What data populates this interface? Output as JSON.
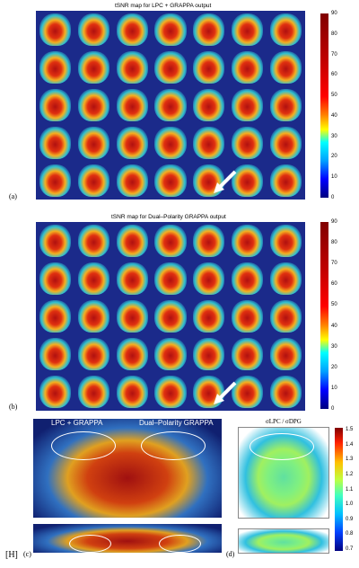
{
  "figure": {
    "panel_a": {
      "label": "(a)",
      "title": "tSNR map for LPC + GRAPPA output",
      "colorbar_ticks": [
        "90",
        "80",
        "70",
        "60",
        "50",
        "40",
        "30",
        "20",
        "10",
        "0"
      ]
    },
    "panel_b": {
      "label": "(b)",
      "title": "tSNR map for Dual–Polarity GRAPPA output",
      "colorbar_ticks": [
        "90",
        "80",
        "70",
        "60",
        "50",
        "40",
        "30",
        "20",
        "10",
        "0"
      ]
    },
    "panel_c": {
      "label": "(c)",
      "left_title": "LPC + GRAPPA",
      "right_title": "Dual–Polarity GRAPPA"
    },
    "panel_d": {
      "label": "(d)",
      "title": "σLPC / σDPG",
      "colorbar_ticks": [
        "1.5",
        "1.4",
        "1.3",
        "1.2",
        "1.1",
        "1.0",
        "0.9",
        "0.8",
        "0.7"
      ]
    },
    "corner_label": "[H]"
  },
  "colors": {
    "background": "#1b2a8a",
    "arrow": "#ffffff"
  }
}
